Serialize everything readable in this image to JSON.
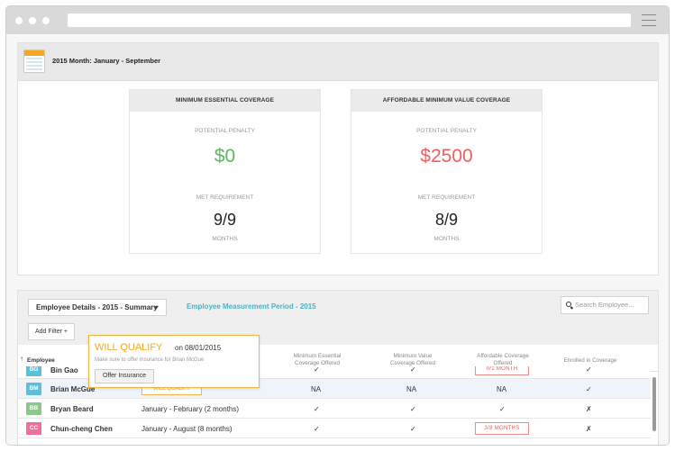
{
  "summary": {
    "period_label": "2015 Month: January - September",
    "cards": [
      {
        "title": "MINIMUM ESSENTIAL COVERAGE",
        "penalty_label": "POTENTIAL PENALTY",
        "penalty_value": "$0",
        "penalty_color": "#5cb85c",
        "met_label": "MET REQUIREMENT",
        "met_value": "9/9",
        "unit_label": "MONTHS"
      },
      {
        "title": "AFFORDABLE MINIMUM VALUE COVERAGE",
        "penalty_label": "POTENTIAL PENALTY",
        "penalty_value": "$2500",
        "penalty_color": "#ee6060",
        "met_label": "MET REQUIREMENT",
        "met_value": "8/9",
        "unit_label": "MONTHS"
      }
    ]
  },
  "toolbar": {
    "view_select": "Employee Details - 2015 - Summary",
    "measurement_period": "Employee Measurement Period - 2015",
    "search_placeholder": "Search Employee...",
    "add_filter": "Add Filter +"
  },
  "table": {
    "sort_arrow": "↑",
    "headers": {
      "employee": "Employee",
      "mec": "Minimum Essential\nCoverage Offered",
      "mvc": "Minimum Value\nCoverage Offered",
      "afford": "Affordable Coverage\nOffered",
      "enrolled": "Enrolled in Coverage"
    },
    "rows": [
      {
        "initials": "BG",
        "avatar_color": "#5bc0de",
        "name": "Bin Gao",
        "coverage": "",
        "mec": "✓",
        "mvc": "✓",
        "afford": "0/1 MONTH",
        "enrolled": "✓"
      },
      {
        "initials": "BM",
        "avatar_color": "#5bc0de",
        "name": "Brian McGue",
        "coverage": "WILL QUALIFY",
        "mec": "NA",
        "mvc": "NA",
        "afford": "NA",
        "enrolled": "✓"
      },
      {
        "initials": "BB",
        "avatar_color": "#8bc98b",
        "name": "Bryan Beard",
        "coverage": "January - February (2 months)",
        "mec": "✓",
        "mvc": "✓",
        "afford": "✓",
        "enrolled": "✗"
      },
      {
        "initials": "CC",
        "avatar_color": "#f06f9a",
        "name": "Chun-cheng Chen",
        "coverage": "January - August (8 months)",
        "mec": "✓",
        "mvc": "✓",
        "afford": "3/8 MONTHS",
        "enrolled": "✗"
      }
    ]
  },
  "popup": {
    "status": "WILL QUALIFY",
    "date_text": "on 08/01/2015",
    "hint": "Make sure to offer insurance for Brian McGue",
    "button": "Offer Insurance"
  }
}
